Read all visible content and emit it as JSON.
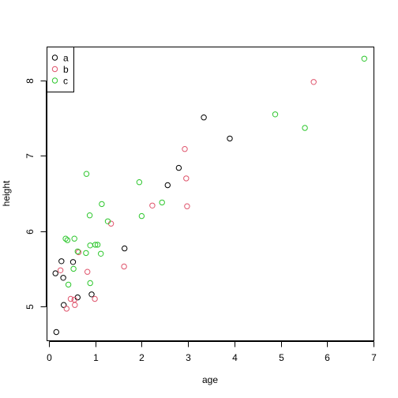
{
  "chart_data": {
    "type": "scatter",
    "title": "",
    "xlabel": "age",
    "ylabel": "height",
    "xlim": [
      -0.05,
      7.0
    ],
    "ylim": [
      4.55,
      8.45
    ],
    "x_ticks": [
      0,
      1,
      2,
      3,
      4,
      5,
      6,
      7
    ],
    "y_ticks": [
      5,
      6,
      7,
      8
    ],
    "grid": false,
    "legend_position": "top-left",
    "series": [
      {
        "name": "a",
        "color": "#000000",
        "points": [
          [
            0.14,
            5.44
          ],
          [
            0.16,
            4.66
          ],
          [
            0.27,
            5.6
          ],
          [
            0.32,
            5.02
          ],
          [
            0.31,
            5.38
          ],
          [
            0.52,
            5.59
          ],
          [
            0.62,
            5.12
          ],
          [
            0.92,
            5.16
          ],
          [
            1.63,
            5.77
          ],
          [
            2.56,
            6.61
          ],
          [
            2.8,
            6.84
          ],
          [
            3.34,
            7.51
          ],
          [
            3.9,
            7.23
          ]
        ]
      },
      {
        "name": "b",
        "color": "#DF536B",
        "points": [
          [
            0.25,
            5.48
          ],
          [
            0.38,
            4.97
          ],
          [
            0.47,
            5.1
          ],
          [
            0.55,
            5.09
          ],
          [
            0.56,
            5.02
          ],
          [
            0.64,
            5.72
          ],
          [
            0.83,
            5.46
          ],
          [
            0.99,
            5.1
          ],
          [
            1.34,
            6.1
          ],
          [
            1.62,
            5.53
          ],
          [
            2.23,
            6.34
          ],
          [
            2.93,
            7.09
          ],
          [
            2.96,
            6.7
          ],
          [
            2.98,
            6.33
          ],
          [
            5.71,
            7.98
          ]
        ]
      },
      {
        "name": "c",
        "color": "#2EC72E",
        "points": [
          [
            0.36,
            5.9
          ],
          [
            0.4,
            5.88
          ],
          [
            0.42,
            5.29
          ],
          [
            0.53,
            5.5
          ],
          [
            0.55,
            5.9
          ],
          [
            0.62,
            5.73
          ],
          [
            0.8,
            5.71
          ],
          [
            0.81,
            6.76
          ],
          [
            0.88,
            6.21
          ],
          [
            0.89,
            5.81
          ],
          [
            0.89,
            5.31
          ],
          [
            1.0,
            5.82
          ],
          [
            1.05,
            5.82
          ],
          [
            1.12,
            5.7
          ],
          [
            1.14,
            6.36
          ],
          [
            1.27,
            6.13
          ],
          [
            1.95,
            6.65
          ],
          [
            2.0,
            6.2
          ],
          [
            2.44,
            6.38
          ],
          [
            4.88,
            7.55
          ],
          [
            5.52,
            7.37
          ],
          [
            6.8,
            8.29
          ]
        ]
      }
    ]
  }
}
